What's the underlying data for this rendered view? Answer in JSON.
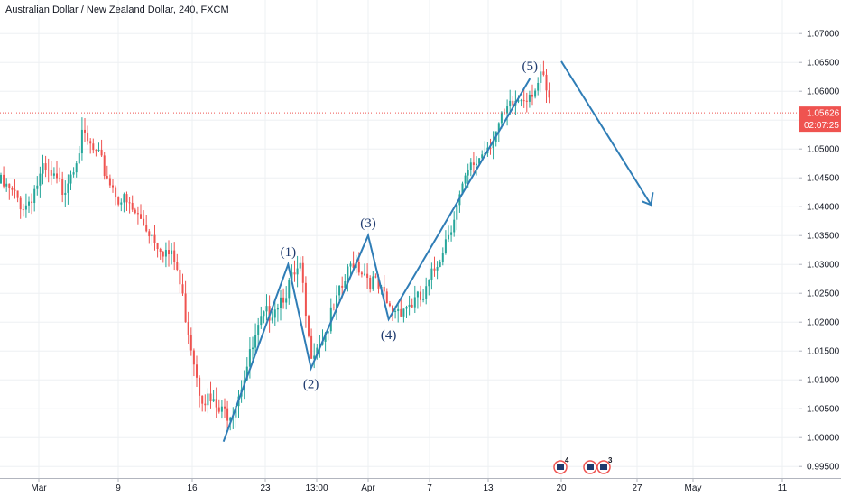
{
  "chart_data": {
    "type": "candlestick",
    "title": "Australian Dollar / New Zealand Dollar, 240, FXCM",
    "x_ticks": [
      "Mar",
      "9",
      "16",
      "23",
      "13:00",
      "Apr",
      "7",
      "13",
      "20",
      "27",
      "May",
      "11"
    ],
    "y_ticks": [
      "0.99500",
      "1.00000",
      "1.00500",
      "1.01000",
      "1.01500",
      "1.02000",
      "1.02500",
      "1.03000",
      "1.03500",
      "1.04000",
      "1.04500",
      "1.05000",
      "1.05500",
      "1.06000",
      "1.06500",
      "1.07000"
    ],
    "ylim": [
      0.993,
      1.073
    ],
    "last_price": "1.05626",
    "countdown": "02:07:25",
    "wave_points": [
      {
        "label": "",
        "x": "Mar 19",
        "y": 0.9993
      },
      {
        "label": "(1)",
        "x": "Mar 25",
        "y": 1.03
      },
      {
        "label": "(2)",
        "x": "Mar 27",
        "y": 1.012
      },
      {
        "label": "(3)",
        "x": "Apr 1",
        "y": 1.035
      },
      {
        "label": "(4)",
        "x": "Apr 3",
        "y": 1.0205
      },
      {
        "label": "(5)",
        "x": "Apr 17",
        "y": 1.0622
      }
    ],
    "projection": {
      "from": {
        "x": "Apr 20",
        "y": 1.0652
      },
      "to": {
        "x": "Apr 28",
        "y": 1.0403
      }
    },
    "events": [
      {
        "label": "4"
      },
      {
        "label": ""
      },
      {
        "label": "3"
      }
    ],
    "colors": {
      "up": "#26a69a",
      "down": "#ef5350",
      "wave": "#2f7db6",
      "price_line": "#ef5350",
      "badge": "#ef5350",
      "grid": "#eef0f3"
    }
  }
}
